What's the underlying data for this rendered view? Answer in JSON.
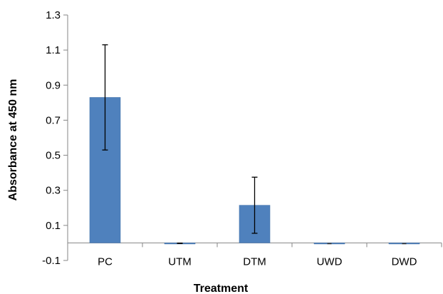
{
  "chart_data": {
    "type": "bar",
    "title": "",
    "xlabel": "Treatment",
    "ylabel": "Absorbance at 450 nm",
    "categories": [
      "PC",
      "UTM",
      "DTM",
      "UWD",
      "DWD"
    ],
    "series": [
      {
        "values": [
          0.83,
          -0.002,
          0.215,
          -0.001,
          -0.001
        ],
        "error": [
          0.3,
          0.001,
          0.16,
          0.0,
          0.0
        ]
      }
    ],
    "ylim": [
      -0.1,
      1.3
    ],
    "yticks": [
      -0.1,
      0.1,
      0.3,
      0.5,
      0.7,
      0.9,
      1.1,
      1.3
    ],
    "ytick_labels": [
      "-0.1",
      "0.1",
      "0.3",
      "0.5",
      "0.7",
      "0.9",
      "1.1",
      "1.3"
    ],
    "grid": false,
    "legend": "none",
    "colors": {
      "bar": "#4f81bd",
      "bar_edge": "#3f6fa8",
      "axis": "#868686",
      "error": "#000000"
    }
  }
}
